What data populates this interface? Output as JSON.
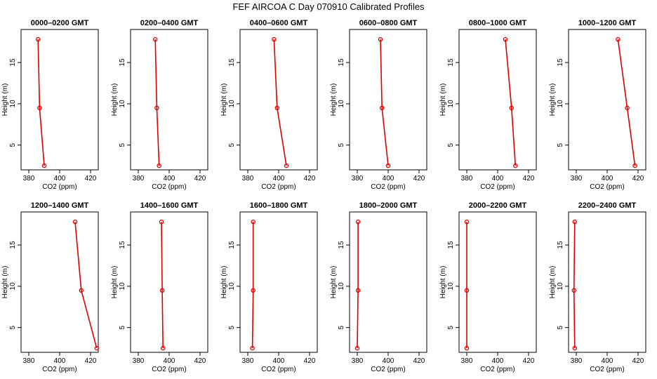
{
  "title": "FEF AIRCOA C  Day 070910  Calibrated Profiles",
  "colors": {
    "series": "#dd0000",
    "axis": "#000000"
  },
  "chart_data": [
    {
      "type": "line",
      "title": "0000–0200 GMT",
      "xlabel": "CO2 (ppm)",
      "ylabel": "Height (m)",
      "xlim": [
        375,
        425
      ],
      "ylim": [
        2,
        19
      ],
      "xticks": [
        380,
        400,
        420
      ],
      "yticks": [
        5,
        10,
        15
      ],
      "points": [
        {
          "x": 386.0,
          "y": 17.8
        },
        {
          "x": 387.0,
          "y": 9.5
        },
        {
          "x": 390.0,
          "y": 2.5
        }
      ]
    },
    {
      "type": "line",
      "title": "0200–0400 GMT",
      "xlabel": "CO2 (ppm)",
      "ylabel": "Height (m)",
      "xlim": [
        375,
        425
      ],
      "ylim": [
        2,
        19
      ],
      "xticks": [
        380,
        400,
        420
      ],
      "yticks": [
        5,
        10,
        15
      ],
      "points": [
        {
          "x": 391.0,
          "y": 17.8
        },
        {
          "x": 392.0,
          "y": 9.5
        },
        {
          "x": 393.5,
          "y": 2.5
        }
      ]
    },
    {
      "type": "line",
      "title": "0400–0600 GMT",
      "xlabel": "CO2 (ppm)",
      "ylabel": "Height (m)",
      "xlim": [
        375,
        425
      ],
      "ylim": [
        2,
        19
      ],
      "xticks": [
        380,
        400,
        420
      ],
      "yticks": [
        5,
        10,
        15
      ],
      "points": [
        {
          "x": 397.0,
          "y": 17.8
        },
        {
          "x": 399.0,
          "y": 9.5
        },
        {
          "x": 405.0,
          "y": 2.5
        }
      ]
    },
    {
      "type": "line",
      "title": "0600–0800 GMT",
      "xlabel": "CO2 (ppm)",
      "ylabel": "Height (m)",
      "xlim": [
        375,
        425
      ],
      "ylim": [
        2,
        19
      ],
      "xticks": [
        380,
        400,
        420
      ],
      "yticks": [
        5,
        10,
        15
      ],
      "points": [
        {
          "x": 395.0,
          "y": 17.8
        },
        {
          "x": 396.0,
          "y": 9.5
        },
        {
          "x": 400.0,
          "y": 2.5
        }
      ]
    },
    {
      "type": "line",
      "title": "0800–1000 GMT",
      "xlabel": "CO2 (ppm)",
      "ylabel": "Height (m)",
      "xlim": [
        375,
        425
      ],
      "ylim": [
        2,
        19
      ],
      "xticks": [
        380,
        400,
        420
      ],
      "yticks": [
        5,
        10,
        15
      ],
      "points": [
        {
          "x": 405.0,
          "y": 17.8
        },
        {
          "x": 409.0,
          "y": 9.5
        },
        {
          "x": 411.5,
          "y": 2.5
        }
      ]
    },
    {
      "type": "line",
      "title": "1000–1200 GMT",
      "xlabel": "CO2 (ppm)",
      "ylabel": "Height (m)",
      "xlim": [
        375,
        425
      ],
      "ylim": [
        2,
        19
      ],
      "xticks": [
        380,
        400,
        420
      ],
      "yticks": [
        5,
        10,
        15
      ],
      "points": [
        {
          "x": 407.0,
          "y": 17.8
        },
        {
          "x": 413.0,
          "y": 9.5
        },
        {
          "x": 418.0,
          "y": 2.5
        }
      ]
    },
    {
      "type": "line",
      "title": "1200–1400 GMT",
      "xlabel": "CO2 (ppm)",
      "ylabel": "Height (m)",
      "xlim": [
        375,
        425
      ],
      "ylim": [
        2,
        19
      ],
      "xticks": [
        380,
        400,
        420
      ],
      "yticks": [
        5,
        10,
        15
      ],
      "points": [
        {
          "x": 410.0,
          "y": 17.8
        },
        {
          "x": 414.0,
          "y": 9.5
        },
        {
          "x": 424.0,
          "y": 2.5
        }
      ]
    },
    {
      "type": "line",
      "title": "1400–1600 GMT",
      "xlabel": "CO2 (ppm)",
      "ylabel": "Height (m)",
      "xlim": [
        375,
        425
      ],
      "ylim": [
        2,
        19
      ],
      "xticks": [
        380,
        400,
        420
      ],
      "yticks": [
        5,
        10,
        15
      ],
      "points": [
        {
          "x": 395.0,
          "y": 17.8
        },
        {
          "x": 395.5,
          "y": 9.5
        },
        {
          "x": 396.0,
          "y": 2.5
        }
      ]
    },
    {
      "type": "line",
      "title": "1600–1800 GMT",
      "xlabel": "CO2 (ppm)",
      "ylabel": "Height (m)",
      "xlim": [
        375,
        425
      ],
      "ylim": [
        2,
        19
      ],
      "xticks": [
        380,
        400,
        420
      ],
      "yticks": [
        5,
        10,
        15
      ],
      "points": [
        {
          "x": 383.5,
          "y": 17.8
        },
        {
          "x": 383.5,
          "y": 9.5
        },
        {
          "x": 383.0,
          "y": 2.5
        }
      ]
    },
    {
      "type": "line",
      "title": "1800–2000 GMT",
      "xlabel": "CO2 (ppm)",
      "ylabel": "Height (m)",
      "xlim": [
        375,
        425
      ],
      "ylim": [
        2,
        19
      ],
      "xticks": [
        380,
        400,
        420
      ],
      "yticks": [
        5,
        10,
        15
      ],
      "points": [
        {
          "x": 380.5,
          "y": 17.8
        },
        {
          "x": 380.5,
          "y": 9.5
        },
        {
          "x": 380.0,
          "y": 2.5
        }
      ]
    },
    {
      "type": "line",
      "title": "2000–2200 GMT",
      "xlabel": "CO2 (ppm)",
      "ylabel": "Height (m)",
      "xlim": [
        375,
        425
      ],
      "ylim": [
        2,
        19
      ],
      "xticks": [
        380,
        400,
        420
      ],
      "yticks": [
        5,
        10,
        15
      ],
      "points": [
        {
          "x": 380.0,
          "y": 17.8
        },
        {
          "x": 380.0,
          "y": 9.5
        },
        {
          "x": 380.0,
          "y": 2.5
        }
      ]
    },
    {
      "type": "line",
      "title": "2200–2400 GMT",
      "xlabel": "CO2 (ppm)",
      "ylabel": "Height (m)",
      "xlim": [
        375,
        425
      ],
      "ylim": [
        2,
        19
      ],
      "xticks": [
        380,
        400,
        420
      ],
      "yticks": [
        5,
        10,
        15
      ],
      "points": [
        {
          "x": 379.0,
          "y": 17.8
        },
        {
          "x": 378.5,
          "y": 9.5
        },
        {
          "x": 379.0,
          "y": 2.5
        }
      ]
    }
  ]
}
